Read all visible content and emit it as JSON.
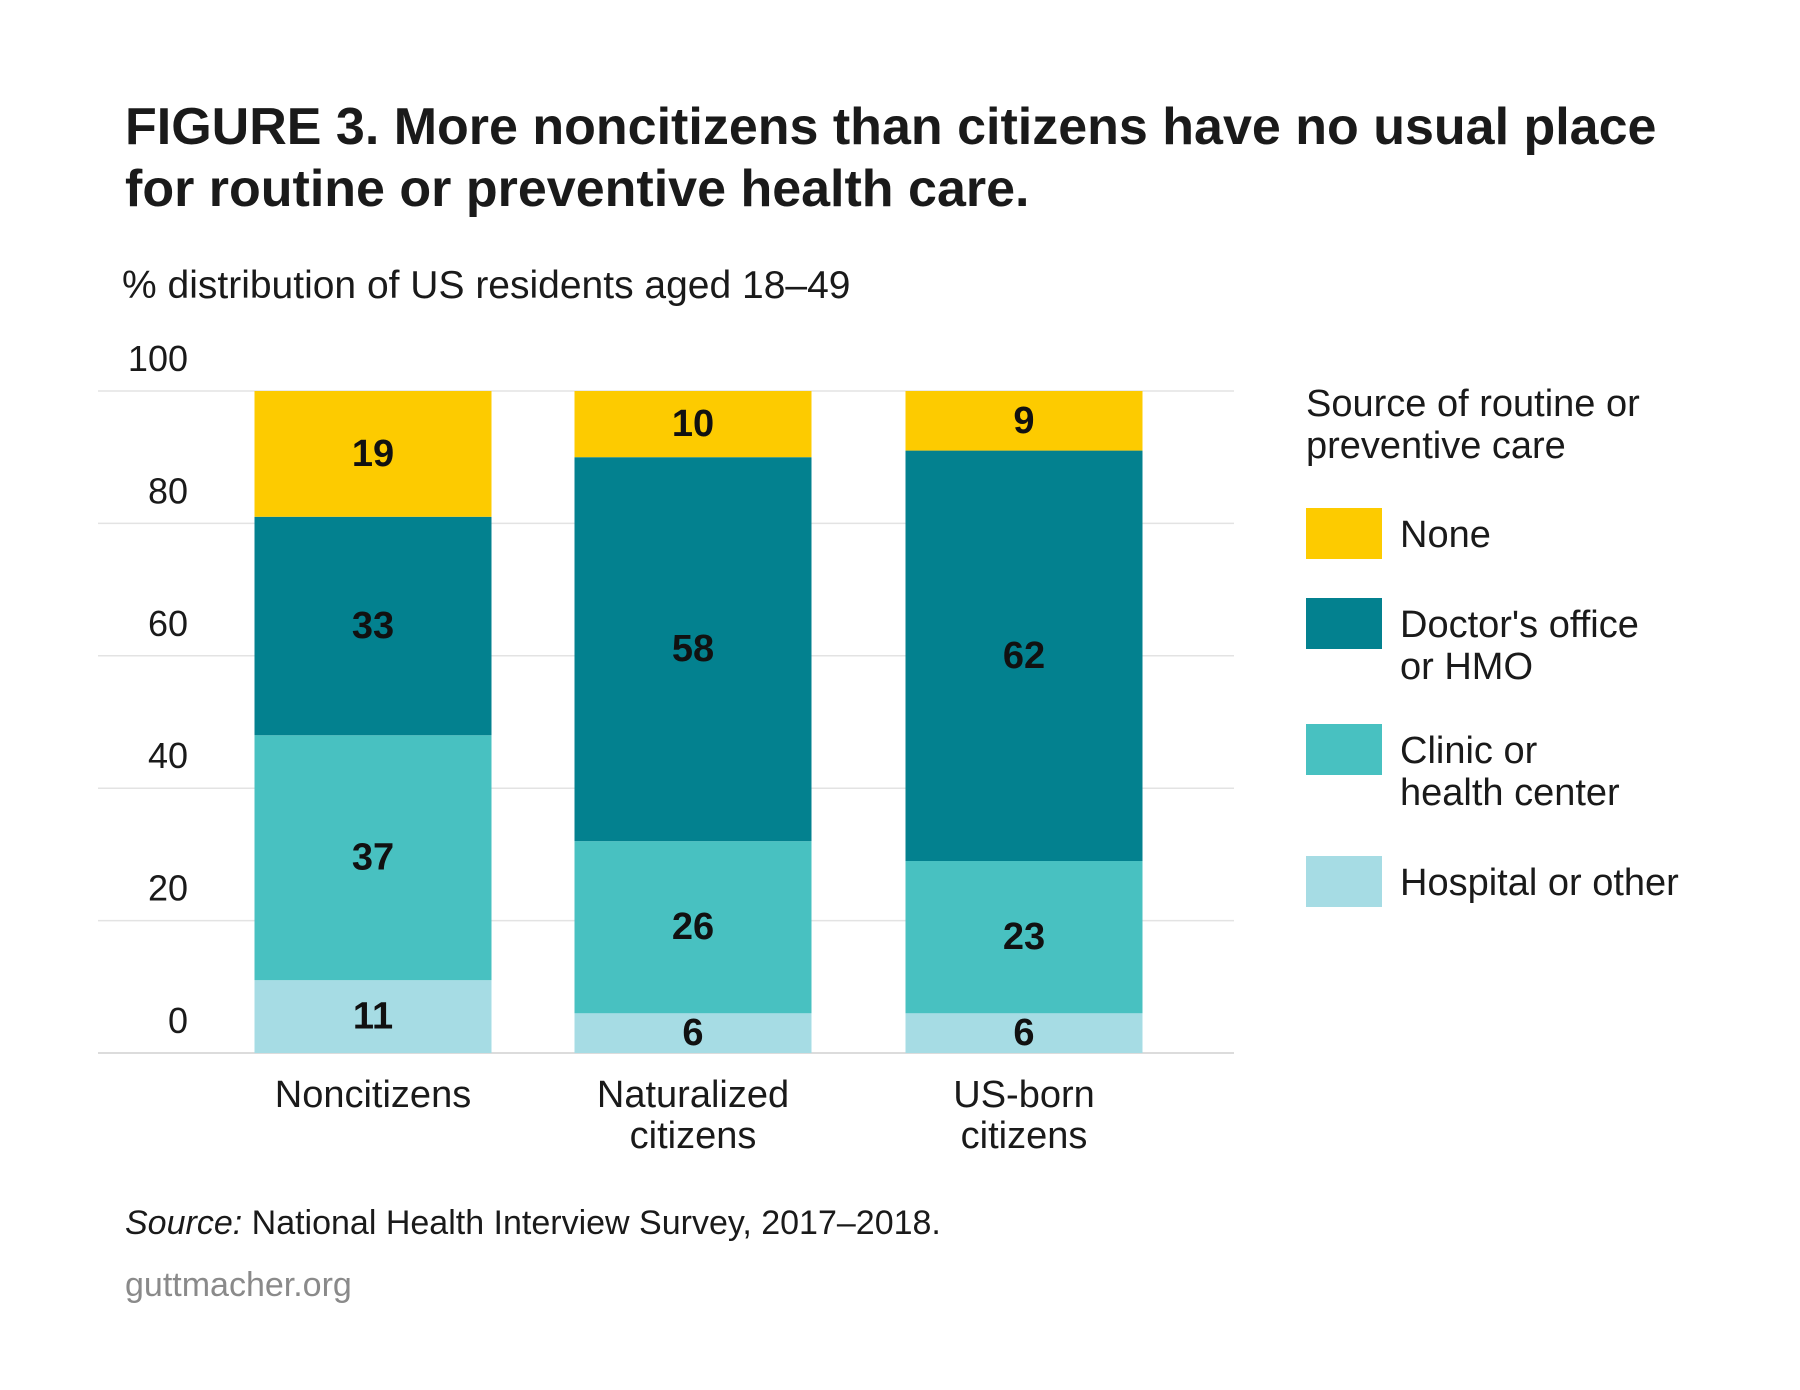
{
  "chart_data": {
    "type": "bar",
    "stacked": true,
    "title": "FIGURE 3. More noncitizens than citizens have no usual place for routine or preventive health care.",
    "subtitle": "% distribution of US residents aged 18–49",
    "categories": [
      "Noncitizens",
      "Naturalized citizens",
      "US-born citizens"
    ],
    "category_lines": [
      [
        "Noncitizens"
      ],
      [
        "Naturalized",
        "citizens"
      ],
      [
        "US-born",
        "citizens"
      ]
    ],
    "series": [
      {
        "name": "Hospital or other",
        "color": "#a6dce4",
        "values": [
          11,
          6,
          6
        ]
      },
      {
        "name": "Clinic or health center",
        "color": "#48c1c1",
        "values": [
          37,
          26,
          23
        ]
      },
      {
        "name": "Doctor's office or HMO",
        "color": "#03818f",
        "values": [
          33,
          58,
          62
        ]
      },
      {
        "name": "None",
        "color": "#fdcb00",
        "values": [
          19,
          10,
          9
        ]
      }
    ],
    "ylim": [
      0,
      100
    ],
    "yticks": [
      0,
      20,
      40,
      60,
      80,
      100
    ],
    "grid": true,
    "legend_position": "right",
    "legend_title": "Source of routine or preventive care"
  },
  "legend": {
    "title_line1": "Source of routine or",
    "title_line2": "preventive care",
    "items": [
      {
        "line1": "None",
        "line2": "",
        "color": "#fdcb00"
      },
      {
        "line1": "Doctor's office",
        "line2": "or HMO",
        "color": "#03818f"
      },
      {
        "line1": "Clinic or",
        "line2": "health center",
        "color": "#48c1c1"
      },
      {
        "line1": "Hospital or other",
        "line2": "",
        "color": "#a6dce4"
      }
    ]
  },
  "source": {
    "label": "Source:",
    "text": " National Health Interview Survey, 2017–2018."
  },
  "credit": "guttmacher.org"
}
